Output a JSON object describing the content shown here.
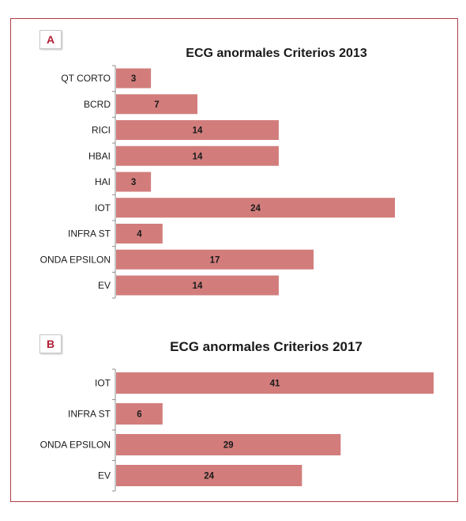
{
  "chart_data": [
    {
      "type": "bar",
      "orientation": "horizontal",
      "panel": "A",
      "title": "ECG anormales Criterios 2013",
      "categories": [
        "QT CORTO",
        "BCRD",
        "RICI",
        "HBAI",
        "HAI",
        "IOT",
        "INFRA ST",
        "ONDA EPSILON",
        "EV"
      ],
      "values": [
        3,
        7,
        14,
        14,
        3,
        24,
        4,
        17,
        14
      ],
      "xlim": [
        0,
        24
      ],
      "grid": false,
      "legend": "none",
      "bar_color": "#d27d7c"
    },
    {
      "type": "bar",
      "orientation": "horizontal",
      "panel": "B",
      "title": "ECG anormales Criterios 2017",
      "categories": [
        "IOT",
        "INFRA ST",
        "ONDA EPSILON",
        "EV"
      ],
      "values": [
        41,
        6,
        29,
        24
      ],
      "xlim": [
        0,
        41
      ],
      "grid": false,
      "legend": "none",
      "bar_color": "#d27d7c"
    }
  ]
}
